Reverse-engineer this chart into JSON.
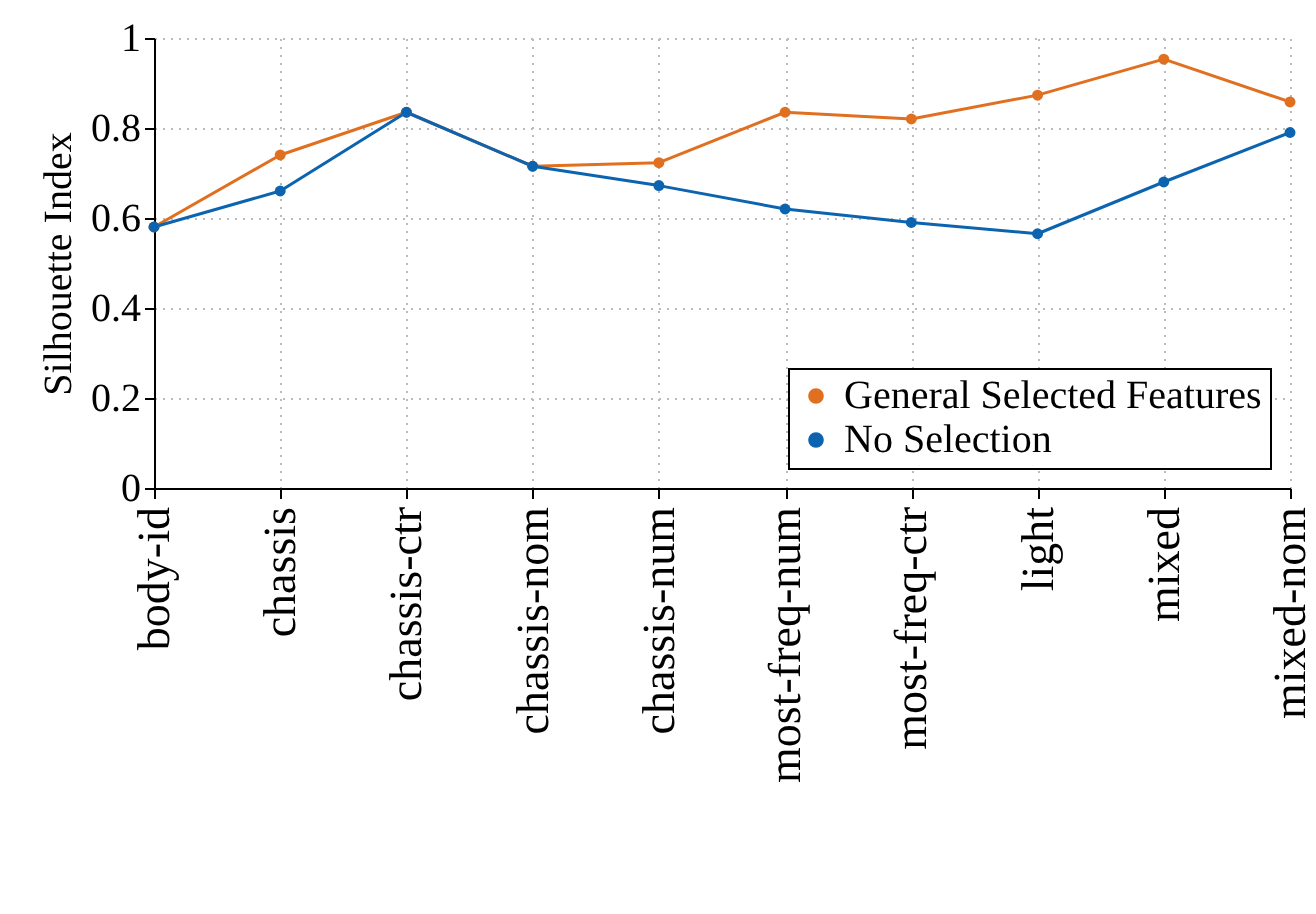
{
  "chart_data": {
    "type": "line",
    "ylabel": "Silhouette Index",
    "categories": [
      "body-id",
      "chassis",
      "chassis-ctr",
      "chassis-nom",
      "chassis-num",
      "most-freq-num",
      "most-freq-ctr",
      "light",
      "mixed",
      "mixed-nom"
    ],
    "series": [
      {
        "name": "General Selected Features",
        "color": "#e07020",
        "values": [
          0.58,
          0.74,
          0.835,
          0.715,
          0.723,
          0.835,
          0.82,
          0.873,
          0.953,
          0.858
        ]
      },
      {
        "name": "No Selection",
        "color": "#0c64b0",
        "values": [
          0.58,
          0.66,
          0.835,
          0.715,
          0.672,
          0.62,
          0.59,
          0.565,
          0.68,
          0.79
        ]
      }
    ],
    "ylim": [
      0,
      1
    ],
    "yticks": [
      0,
      0.2,
      0.4,
      0.6,
      0.8,
      1
    ],
    "grid": true,
    "legend": "bottom right",
    "marker": "circle",
    "line_style": "solid"
  }
}
